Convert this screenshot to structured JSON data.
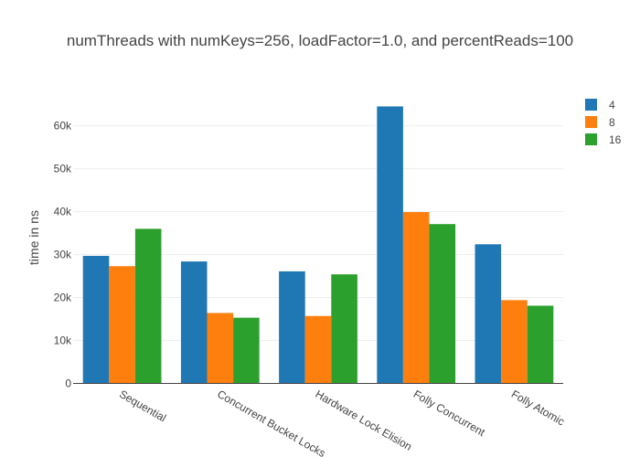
{
  "chart_data": {
    "type": "bar",
    "title": "numThreads with numKeys=256, loadFactor=1.0, and percentReads=100",
    "xlabel": "",
    "ylabel": "time in ns",
    "categories": [
      "Sequential",
      "Concurrent Bucket Locks",
      "Hardware Lock Elision",
      "Folly Concurrent",
      "Folly Atomic"
    ],
    "series": [
      {
        "name": "4",
        "color": "#1f77b4",
        "values": [
          29700,
          28400,
          26100,
          64500,
          32400
        ]
      },
      {
        "name": "8",
        "color": "#ff7f0e",
        "values": [
          27300,
          16400,
          15700,
          39900,
          19400
        ]
      },
      {
        "name": "16",
        "color": "#2ca02c",
        "values": [
          36000,
          15300,
          25400,
          37100,
          18100
        ]
      }
    ],
    "ylim": [
      0,
      68000
    ],
    "yticks": [
      0,
      10000,
      20000,
      30000,
      40000,
      50000,
      60000
    ],
    "ytick_labels": [
      "0",
      "10k",
      "20k",
      "30k",
      "40k",
      "50k",
      "60k"
    ],
    "grid": true,
    "legend_position": "top-right"
  }
}
